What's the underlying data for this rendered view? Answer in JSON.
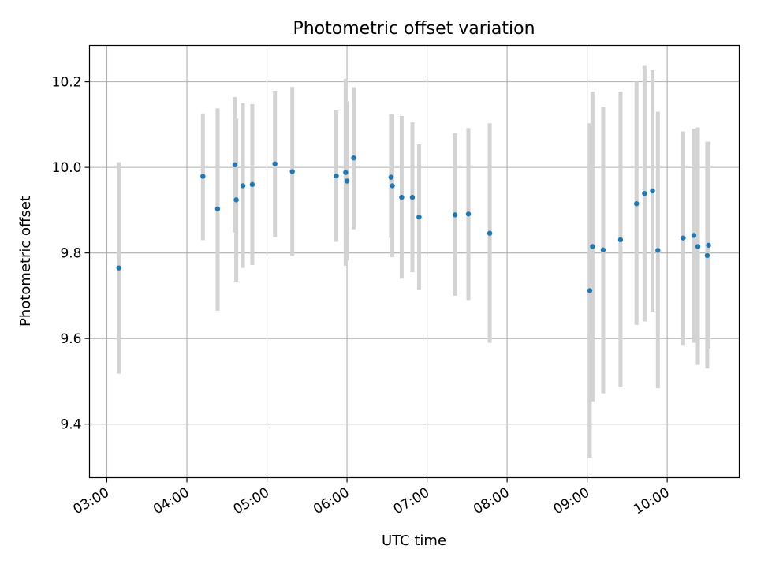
{
  "chart_data": {
    "type": "scatter",
    "title": "Photometric offset variation",
    "xlabel": "UTC time",
    "ylabel": "Photometric offset",
    "xlim": [
      "02:47",
      "10:54"
    ],
    "ylim": [
      9.275,
      10.285
    ],
    "x_ticks": [
      "03:00",
      "04:00",
      "05:00",
      "06:00",
      "07:00",
      "08:00",
      "09:00",
      "10:00"
    ],
    "y_ticks": [
      9.4,
      9.6,
      9.8,
      10.0,
      10.2
    ],
    "y_tick_labels": [
      "9.4",
      "9.6",
      "9.8",
      "10.0",
      "10.2"
    ],
    "grid": true,
    "errorbar_color": "#d3d3d3",
    "marker_color": "#1f77b4",
    "points": [
      {
        "t": "03:09",
        "y": 9.765,
        "lo": 9.518,
        "hi": 10.012
      },
      {
        "t": "04:12",
        "y": 9.979,
        "lo": 9.83,
        "hi": 10.126
      },
      {
        "t": "04:23",
        "y": 9.903,
        "lo": 9.665,
        "hi": 10.138
      },
      {
        "t": "04:36",
        "y": 10.006,
        "lo": 9.848,
        "hi": 10.164
      },
      {
        "t": "04:37",
        "y": 9.924,
        "lo": 9.733,
        "hi": 10.114
      },
      {
        "t": "04:42",
        "y": 9.957,
        "lo": 9.765,
        "hi": 10.15
      },
      {
        "t": "04:49",
        "y": 9.96,
        "lo": 9.772,
        "hi": 10.148
      },
      {
        "t": "05:06",
        "y": 10.008,
        "lo": 9.837,
        "hi": 10.179
      },
      {
        "t": "05:19",
        "y": 9.99,
        "lo": 9.792,
        "hi": 10.188
      },
      {
        "t": "05:52",
        "y": 9.98,
        "lo": 9.826,
        "hi": 10.133
      },
      {
        "t": "05:59",
        "y": 9.988,
        "lo": 9.77,
        "hi": 10.207
      },
      {
        "t": "06:00",
        "y": 9.968,
        "lo": 9.782,
        "hi": 10.154
      },
      {
        "t": "06:05",
        "y": 10.022,
        "lo": 9.855,
        "hi": 10.187
      },
      {
        "t": "06:33",
        "y": 9.977,
        "lo": 9.835,
        "hi": 10.125
      },
      {
        "t": "06:34",
        "y": 9.957,
        "lo": 9.79,
        "hi": 10.124
      },
      {
        "t": "06:41",
        "y": 9.93,
        "lo": 9.74,
        "hi": 10.12
      },
      {
        "t": "06:49",
        "y": 9.93,
        "lo": 9.755,
        "hi": 10.105
      },
      {
        "t": "06:54",
        "y": 9.884,
        "lo": 9.714,
        "hi": 10.054
      },
      {
        "t": "07:21",
        "y": 9.889,
        "lo": 9.7,
        "hi": 10.08
      },
      {
        "t": "07:31",
        "y": 9.891,
        "lo": 9.69,
        "hi": 10.092
      },
      {
        "t": "07:47",
        "y": 9.846,
        "lo": 9.59,
        "hi": 10.103
      },
      {
        "t": "09:02",
        "y": 9.712,
        "lo": 9.322,
        "hi": 10.103
      },
      {
        "t": "09:04",
        "y": 9.815,
        "lo": 9.453,
        "hi": 10.177
      },
      {
        "t": "09:12",
        "y": 9.807,
        "lo": 9.472,
        "hi": 10.142
      },
      {
        "t": "09:25",
        "y": 9.831,
        "lo": 9.486,
        "hi": 10.177
      },
      {
        "t": "09:37",
        "y": 9.915,
        "lo": 9.632,
        "hi": 10.2
      },
      {
        "t": "09:43",
        "y": 9.939,
        "lo": 9.64,
        "hi": 10.237
      },
      {
        "t": "09:49",
        "y": 9.945,
        "lo": 9.663,
        "hi": 10.227
      },
      {
        "t": "09:53",
        "y": 9.806,
        "lo": 9.484,
        "hi": 10.13
      },
      {
        "t": "10:12",
        "y": 9.835,
        "lo": 9.585,
        "hi": 10.084
      },
      {
        "t": "10:20",
        "y": 9.841,
        "lo": 9.59,
        "hi": 10.09
      },
      {
        "t": "10:23",
        "y": 9.815,
        "lo": 9.538,
        "hi": 10.093
      },
      {
        "t": "10:30",
        "y": 9.794,
        "lo": 9.53,
        "hi": 10.06
      },
      {
        "t": "10:31",
        "y": 9.818,
        "lo": 9.577,
        "hi": 10.06
      }
    ]
  }
}
